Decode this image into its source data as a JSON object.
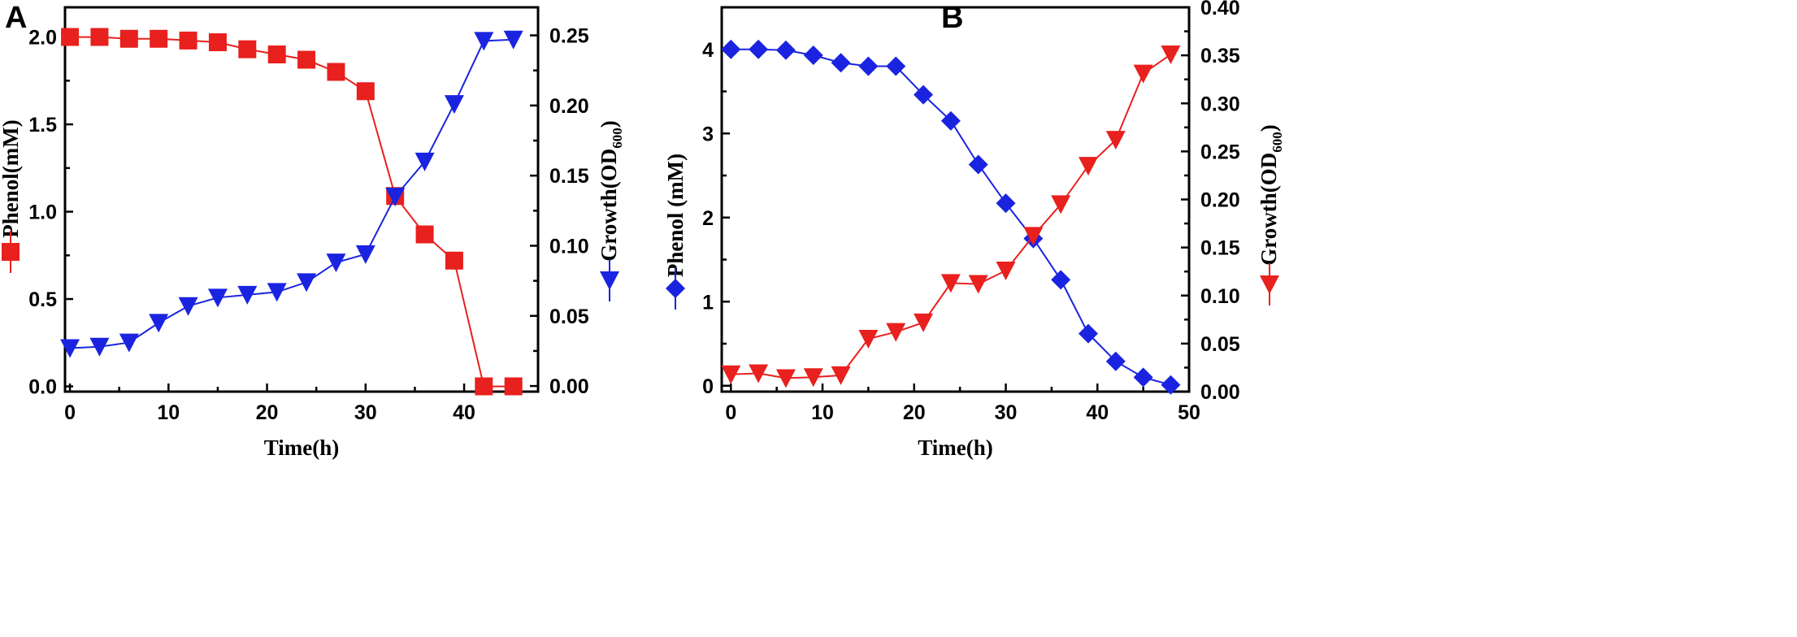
{
  "chart_data": [
    {
      "panel": "A",
      "type": "line",
      "xlabel": "Time(h)",
      "ylabel_left": "Phenol(mM)",
      "ylabel_right": "Growth(OD",
      "ylabel_right_sub": "600",
      "ylabel_right_close": ")",
      "xlim": [
        -0.5,
        47.5
      ],
      "ylim_left": [
        -0.03,
        2.17
      ],
      "ylim_right": [
        -0.004,
        0.27
      ],
      "xticks": [
        0,
        10,
        20,
        30,
        40
      ],
      "yticks_left": [
        "0.0",
        "0.5",
        "1.0",
        "1.5",
        "2.0"
      ],
      "yticks_left_vals": [
        0,
        0.5,
        1.0,
        1.5,
        2.0
      ],
      "yticks_right": [
        "0.00",
        "0.05",
        "0.10",
        "0.15",
        "0.20",
        "0.25"
      ],
      "yticks_right_vals": [
        0,
        0.05,
        0.1,
        0.15,
        0.2,
        0.25
      ],
      "series": [
        {
          "name": "Phenol",
          "axis": "left",
          "color": "#e8201e",
          "marker": "square",
          "x": [
            0,
            3,
            6,
            9,
            12,
            15,
            18,
            21,
            24,
            27,
            30,
            33,
            36,
            39,
            42,
            45
          ],
          "values": [
            2.0,
            2.0,
            1.99,
            1.99,
            1.98,
            1.97,
            1.93,
            1.9,
            1.87,
            1.8,
            1.69,
            1.09,
            0.87,
            0.72,
            0.0,
            0.0
          ]
        },
        {
          "name": "Growth",
          "axis": "right",
          "color": "#1a24e0",
          "marker": "triangle-down",
          "x": [
            0,
            3,
            6,
            9,
            12,
            15,
            18,
            21,
            24,
            27,
            30,
            33,
            36,
            39,
            42,
            45
          ],
          "values": [
            0.027,
            0.028,
            0.031,
            0.045,
            0.057,
            0.063,
            0.065,
            0.067,
            0.074,
            0.088,
            0.094,
            0.135,
            0.16,
            0.201,
            0.246,
            0.247
          ]
        }
      ]
    },
    {
      "panel": "B",
      "type": "line",
      "xlabel": "Time(h)",
      "ylabel_left": "Phenol (mM)",
      "ylabel_right": "Growth(OD",
      "ylabel_right_sub": "600",
      "ylabel_right_close": ")",
      "xlim": [
        -1,
        50
      ],
      "ylim_left": [
        -0.07,
        4.5
      ],
      "ylim_right": [
        0,
        0.4
      ],
      "xticks": [
        0,
        10,
        20,
        30,
        40,
        50
      ],
      "yticks_left": [
        "0",
        "1",
        "2",
        "3",
        "4"
      ],
      "yticks_left_vals": [
        0,
        1,
        2,
        3,
        4
      ],
      "yticks_right": [
        "0.00",
        "0.05",
        "0.10",
        "0.15",
        "0.20",
        "0.25",
        "0.30",
        "0.35",
        "0.40"
      ],
      "yticks_right_vals": [
        0,
        0.05,
        0.1,
        0.15,
        0.2,
        0.25,
        0.3,
        0.35,
        0.4
      ],
      "series": [
        {
          "name": "Phenol",
          "axis": "left",
          "color": "#1a24e0",
          "marker": "diamond",
          "x": [
            0,
            3,
            6,
            9,
            12,
            15,
            18,
            21,
            24,
            27,
            30,
            33,
            36,
            39,
            42,
            45,
            48
          ],
          "values": [
            4.0,
            4.0,
            3.99,
            3.93,
            3.84,
            3.8,
            3.8,
            3.46,
            3.15,
            2.63,
            2.17,
            1.75,
            1.26,
            0.62,
            0.29,
            0.1,
            0.01
          ]
        },
        {
          "name": "Growth",
          "axis": "right",
          "color": "#e8201e",
          "marker": "triangle-down",
          "x": [
            0,
            3,
            6,
            9,
            12,
            15,
            18,
            21,
            24,
            27,
            30,
            33,
            36,
            39,
            42,
            45,
            48
          ],
          "values": [
            0.018,
            0.019,
            0.014,
            0.015,
            0.017,
            0.055,
            0.062,
            0.072,
            0.113,
            0.112,
            0.126,
            0.162,
            0.195,
            0.235,
            0.262,
            0.331,
            0.351
          ]
        }
      ]
    }
  ]
}
